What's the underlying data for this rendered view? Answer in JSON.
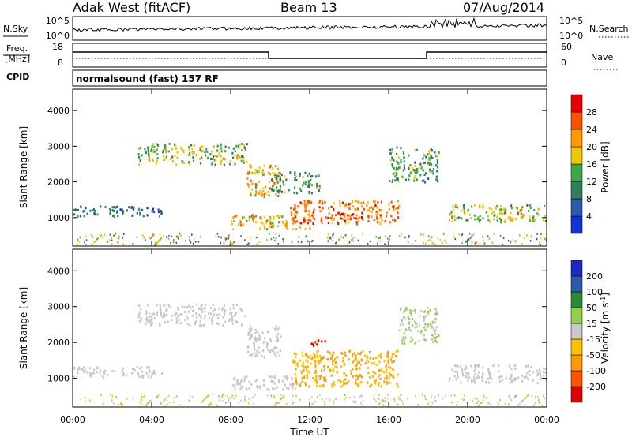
{
  "header": {
    "site": "Adak West (fitACF)",
    "beam": "Beam 13",
    "date": "07/Aug/2014"
  },
  "noise_panel": {
    "left_label": "N.Sky",
    "left_ticks": [
      "10^5",
      "10^0"
    ],
    "right_ticks": [
      "10^5",
      "10^0"
    ],
    "right_label": "N.Search",
    "right_line_style": "dotted"
  },
  "freq_panel": {
    "left_label_line1": "Freq.",
    "left_label_line2": "[MHz]",
    "left_ticks": [
      "18",
      "8"
    ],
    "right_ticks": [
      "60",
      "0"
    ],
    "right_label": "Nave",
    "right_line_style": "dotted"
  },
  "cpid_panel": {
    "label": "CPID",
    "text": "normalsound (fast) 157 RF"
  },
  "colorbars": {
    "power": {
      "label": "Power [dB]",
      "ticks": [
        "4",
        "8",
        "12",
        "16",
        "20",
        "24",
        "28"
      ],
      "colors": [
        "#1430d8",
        "#2a5aa8",
        "#2f7f5a",
        "#3aa84a",
        "#f0c800",
        "#ff9a00",
        "#ff5000",
        "#e80000"
      ]
    },
    "velocity": {
      "label": "Velocity [m s",
      "label_sup": "-1",
      "label_end": "]",
      "ticks": [
        "-200",
        "-100",
        "-50",
        "-15",
        "15",
        "50",
        "100",
        "200"
      ],
      "colors": [
        "#e00000",
        "#ff5500",
        "#ff9a00",
        "#ffc000",
        "#c8c8c8",
        "#8fd24a",
        "#2a8a3a",
        "#2a5ab0",
        "#1a2ac0"
      ]
    }
  },
  "chart_data": [
    {
      "type": "heatmap",
      "name": "power",
      "ylabel": "Slant Range [km]",
      "y_ticks": [
        "1000",
        "2000",
        "3000",
        "4000"
      ],
      "ylim": [
        200,
        4600
      ],
      "xlim": [
        "00:00",
        "24:00"
      ],
      "regions": [
        {
          "x": [
            0.0,
            4.5
          ],
          "y": [
            1050,
            1350
          ],
          "value": 8
        },
        {
          "x": [
            3.3,
            8.8
          ],
          "y": [
            2500,
            3100
          ],
          "value": 16
        },
        {
          "x": [
            8.8,
            10.5
          ],
          "y": [
            1600,
            2500
          ],
          "value": 20
        },
        {
          "x": [
            10.0,
            12.5
          ],
          "y": [
            1700,
            2300
          ],
          "value": 12
        },
        {
          "x": [
            8.0,
            12.0
          ],
          "y": [
            700,
            1100
          ],
          "value": 20
        },
        {
          "x": [
            11.0,
            16.5
          ],
          "y": [
            850,
            1500
          ],
          "value": 24
        },
        {
          "x": [
            13.0,
            15.0
          ],
          "y": [
            1000,
            1200
          ],
          "value": 28
        },
        {
          "x": [
            16.0,
            18.5
          ],
          "y": [
            2000,
            3000
          ],
          "value": 12
        },
        {
          "x": [
            19.0,
            24.0
          ],
          "y": [
            900,
            1400
          ],
          "value": 16
        }
      ]
    },
    {
      "type": "heatmap",
      "name": "velocity",
      "ylabel": "Slant Range [km]",
      "xlabel": "Time UT",
      "x_ticks": [
        "00:00",
        "04:00",
        "08:00",
        "12:00",
        "16:00",
        "20:00",
        "00:00"
      ],
      "y_ticks": [
        "1000",
        "2000",
        "3000",
        "4000"
      ],
      "ylim": [
        200,
        4600
      ],
      "xlim": [
        "00:00",
        "24:00"
      ],
      "regions": [
        {
          "x": [
            0.0,
            4.5
          ],
          "y": [
            1050,
            1350
          ],
          "value": 0
        },
        {
          "x": [
            3.3,
            8.8
          ],
          "y": [
            2500,
            3100
          ],
          "value": 0
        },
        {
          "x": [
            8.8,
            10.5
          ],
          "y": [
            1600,
            2500
          ],
          "value": 0
        },
        {
          "x": [
            8.0,
            11.5
          ],
          "y": [
            700,
            1100
          ],
          "value": 0
        },
        {
          "x": [
            11.0,
            16.5
          ],
          "y": [
            800,
            1800
          ],
          "value": -50
        },
        {
          "x": [
            12.0,
            13.0
          ],
          "y": [
            1900,
            2100
          ],
          "value": -200
        },
        {
          "x": [
            16.5,
            18.5
          ],
          "y": [
            2000,
            3000
          ],
          "value": 15
        },
        {
          "x": [
            19.0,
            24.0
          ],
          "y": [
            900,
            1400
          ],
          "value": 0
        }
      ]
    }
  ]
}
